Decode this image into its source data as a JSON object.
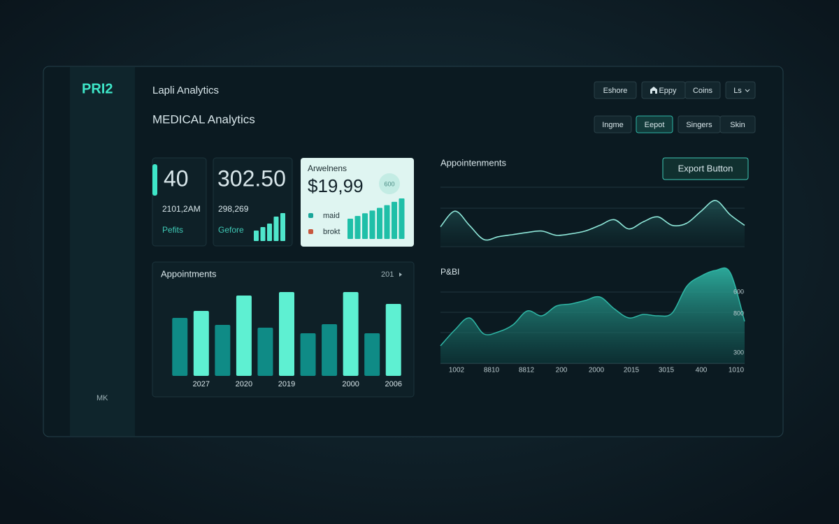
{
  "sidebar": {
    "logo": "PRI2",
    "footer": "MK"
  },
  "header": {
    "subtitle": "Lapli Analytics",
    "title": "MEDICAL Analytics"
  },
  "toolbar": {
    "row1": [
      "Eshore",
      "Eppy",
      "Coins",
      "Ls"
    ],
    "row2": [
      "Ingme",
      "Eepot",
      "Singers",
      "Skin"
    ]
  },
  "cards": [
    {
      "value": "40",
      "detail": "2101,2AM",
      "label": "Pefits"
    },
    {
      "value": "302.50",
      "detail": "298,269",
      "label": "Gefore",
      "bars": [
        15,
        20,
        25,
        35,
        40
      ]
    },
    {
      "title": "Arwelnens",
      "value": "$19,99",
      "badge": "600",
      "legend": [
        "maid",
        "brokt"
      ],
      "bars": [
        30,
        34,
        38,
        42,
        46,
        50,
        55,
        60
      ]
    }
  ],
  "bar_chart": {
    "type": "bar",
    "title": "Appointments",
    "period": "201",
    "categories": [
      null,
      "2027",
      null,
      "2020",
      null,
      "2019",
      null,
      null,
      "2000",
      null,
      "2006"
    ],
    "values": [
      83,
      93,
      73,
      115,
      69,
      120,
      61,
      74,
      120,
      61,
      103
    ],
    "colors": [
      "#0f8b86",
      "#5ef0d2",
      "#0f8b86",
      "#5ef0d2",
      "#0f8b86",
      "#5ef0d2",
      "#0f8b86",
      "#0f8b86",
      "#5ef0d2",
      "#0f8b86",
      "#5ef0d2"
    ]
  },
  "line_chart": {
    "type": "line",
    "title": "Appointenments",
    "button": "Export Button",
    "color": "#8fe8da",
    "values": [
      28,
      50,
      30,
      10,
      14,
      17,
      20,
      22,
      16,
      18,
      22,
      30,
      38,
      25,
      35,
      42,
      30,
      33,
      50,
      65,
      45,
      30
    ]
  },
  "area_chart": {
    "type": "area",
    "title": "P&BI",
    "color": "#2fb7a6",
    "y_labels": [
      "600",
      "800",
      "300"
    ],
    "x_labels": [
      "1002",
      "8810",
      "8812",
      "200",
      "2000",
      "2015",
      "3015",
      "400",
      "1010"
    ],
    "values": [
      25,
      48,
      65,
      42,
      45,
      55,
      75,
      68,
      82,
      85,
      90,
      95,
      78,
      65,
      70,
      68,
      72,
      110,
      125,
      133,
      130,
      60
    ]
  }
}
